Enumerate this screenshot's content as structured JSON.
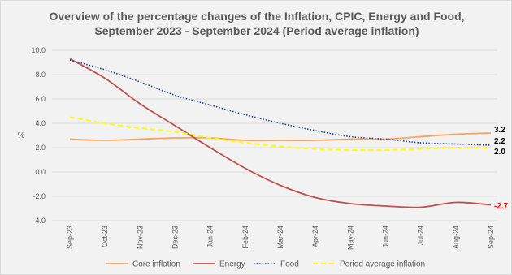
{
  "chart_data": {
    "type": "line",
    "title": "Overview of the percentage changes of the Inflation, CPIC, Energy and Food, September 2023 - September 2024 (Period average inflation)",
    "ylabel": "%",
    "ylim": [
      -4.0,
      10.0
    ],
    "yticks": [
      "10.0",
      "8.0",
      "6.0",
      "4.0",
      "2.0",
      "0.0",
      "-2.0",
      "-4.0"
    ],
    "categories": [
      "Sep-23",
      "Oct-23",
      "Nov-23",
      "Dec-23",
      "Jan-24",
      "Feb-24",
      "Mar-24",
      "Apr-24",
      "May-24",
      "Jun-24",
      "Jul-24",
      "Aug-24",
      "Sep-24"
    ],
    "grid": true,
    "legend": "bottom",
    "series": [
      {
        "name": "Core inflation",
        "color": "#f4a460",
        "style": "solid",
        "values": [
          2.7,
          2.6,
          2.7,
          2.8,
          2.8,
          2.6,
          2.6,
          2.6,
          2.7,
          2.7,
          2.9,
          3.1,
          3.2
        ]
      },
      {
        "name": "Energy",
        "color": "#c0504d",
        "style": "solid",
        "values": [
          9.3,
          7.7,
          5.6,
          3.8,
          2.0,
          0.3,
          -1.1,
          -2.1,
          -2.6,
          -2.8,
          -2.9,
          -2.5,
          -2.7
        ]
      },
      {
        "name": "Food",
        "color": "#1f3e8c",
        "style": "dotted",
        "values": [
          9.2,
          8.4,
          7.4,
          6.3,
          5.5,
          4.7,
          4.0,
          3.4,
          2.9,
          2.7,
          2.4,
          2.3,
          2.2
        ]
      },
      {
        "name": "Period average inflation",
        "color": "#ffff00",
        "style": "dashed",
        "values": [
          4.5,
          4.0,
          3.6,
          3.3,
          2.8,
          2.4,
          2.1,
          1.9,
          1.8,
          1.8,
          1.9,
          2.0,
          2.0
        ]
      }
    ],
    "end_labels": [
      {
        "text": "3.2",
        "color": "#000000"
      },
      {
        "text": "2.2",
        "color": "#000000"
      },
      {
        "text": "2.0",
        "color": "#000000"
      },
      {
        "text": "-2.7",
        "color": "#ff0000"
      }
    ]
  }
}
